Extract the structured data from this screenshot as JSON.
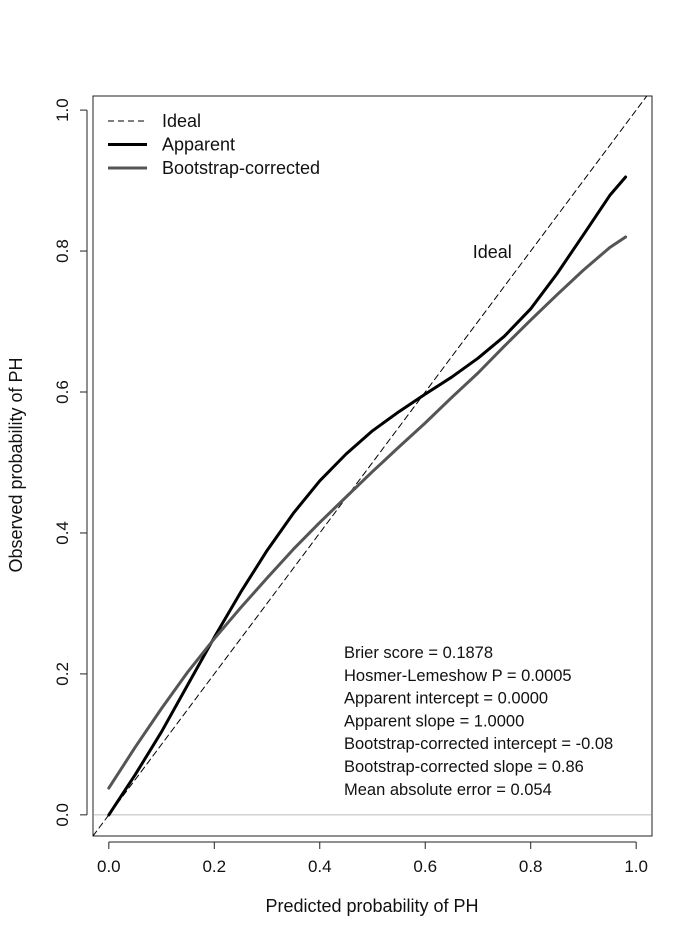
{
  "chart_data": {
    "type": "line",
    "title": "",
    "xlabel": "Predicted probability of PH",
    "ylabel": "Observed probability of PH",
    "xlim": [
      -0.03,
      1.03
    ],
    "ylim": [
      -0.03,
      1.02
    ],
    "x_ticks": [
      0.0,
      0.2,
      0.4,
      0.6,
      0.8,
      1.0
    ],
    "x_tick_labels": [
      "0.0",
      "0.2",
      "0.4",
      "0.6",
      "0.8",
      "1.0"
    ],
    "y_ticks": [
      0.0,
      0.2,
      0.4,
      0.6,
      0.8,
      1.0
    ],
    "y_tick_labels": [
      "0.0",
      "0.2",
      "0.4",
      "0.6",
      "0.8",
      "1.0"
    ],
    "grid": false,
    "legend_position": "top-left",
    "legend": [
      {
        "label": "Ideal",
        "style": "dashed",
        "color": "#000000"
      },
      {
        "label": "Apparent",
        "style": "solid",
        "color": "#000000"
      },
      {
        "label": "Bootstrap-corrected",
        "style": "solid",
        "color": "#555555"
      }
    ],
    "series": [
      {
        "name": "Ideal",
        "color": "#000000",
        "dash": true,
        "x": [
          -0.03,
          1.03
        ],
        "y": [
          -0.03,
          1.03
        ]
      },
      {
        "name": "Apparent",
        "color": "#000000",
        "dash": false,
        "x": [
          0.0,
          0.05,
          0.1,
          0.15,
          0.2,
          0.25,
          0.3,
          0.35,
          0.4,
          0.45,
          0.5,
          0.55,
          0.6,
          0.65,
          0.7,
          0.75,
          0.8,
          0.85,
          0.9,
          0.95,
          0.98
        ],
        "y": [
          0.0,
          0.057,
          0.118,
          0.185,
          0.252,
          0.316,
          0.375,
          0.428,
          0.474,
          0.512,
          0.545,
          0.572,
          0.597,
          0.621,
          0.648,
          0.679,
          0.718,
          0.768,
          0.823,
          0.879,
          0.905
        ]
      },
      {
        "name": "Bootstrap-corrected",
        "color": "#555555",
        "dash": false,
        "x": [
          0.0,
          0.05,
          0.1,
          0.15,
          0.2,
          0.25,
          0.3,
          0.35,
          0.4,
          0.45,
          0.5,
          0.55,
          0.6,
          0.65,
          0.7,
          0.75,
          0.8,
          0.85,
          0.9,
          0.95,
          0.98
        ],
        "y": [
          0.038,
          0.096,
          0.151,
          0.203,
          0.25,
          0.294,
          0.336,
          0.377,
          0.415,
          0.451,
          0.487,
          0.522,
          0.556,
          0.592,
          0.627,
          0.665,
          0.702,
          0.738,
          0.773,
          0.805,
          0.82
        ]
      }
    ],
    "reference_line": {
      "y": 0.0,
      "color": "#bbbbbb"
    },
    "annotations": [
      {
        "text": "Ideal",
        "x": 0.69,
        "y": 0.79
      }
    ],
    "stats_text": [
      "Brier score = 0.1878",
      "Hosmer-Lemeshow P = 0.0005",
      "Apparent intercept = 0.0000",
      "Apparent slope = 1.0000",
      "Bootstrap-corrected intercept = -0.08",
      "Bootstrap-corrected slope = 0.86",
      "Mean absolute error = 0.054"
    ]
  }
}
